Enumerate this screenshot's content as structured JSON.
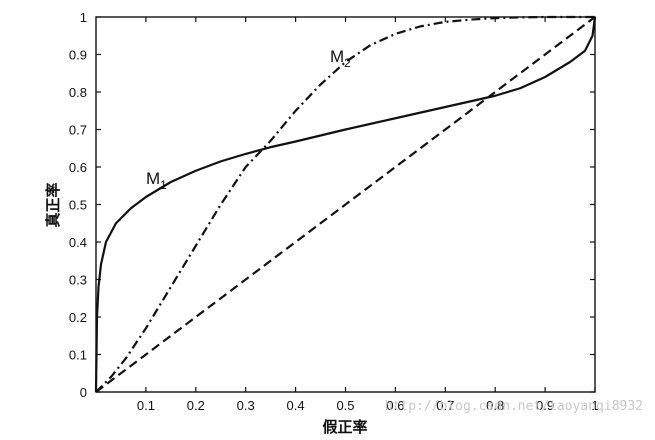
{
  "chart_data": {
    "type": "line",
    "xlabel": "假正率",
    "ylabel": "真正率",
    "xlim": [
      0,
      1
    ],
    "ylim": [
      0,
      1
    ],
    "x_ticks": [
      0.1,
      0.2,
      0.3,
      0.4,
      0.5,
      0.6,
      0.7,
      0.8,
      0.9,
      1
    ],
    "x_tick_labels": [
      "0.1",
      "0.2",
      "0.3",
      "0.4",
      "0.5",
      "0.6",
      "0.7",
      "0.8",
      "0.9",
      "1"
    ],
    "y_ticks": [
      0,
      0.1,
      0.2,
      0.3,
      0.4,
      0.5,
      0.6,
      0.7,
      0.8,
      0.9,
      1
    ],
    "y_tick_labels": [
      "0",
      "0.1",
      "0.2",
      "0.3",
      "0.4",
      "0.5",
      "0.6",
      "0.7",
      "0.8",
      "0.9",
      "1"
    ],
    "grid": false,
    "series": [
      {
        "name": "M1",
        "label_main": "M",
        "label_sub": "1",
        "line_style": "solid",
        "x": [
          0,
          0.002,
          0.005,
          0.01,
          0.02,
          0.04,
          0.07,
          0.1,
          0.15,
          0.2,
          0.25,
          0.3,
          0.35,
          0.4,
          0.45,
          0.5,
          0.55,
          0.6,
          0.65,
          0.7,
          0.75,
          0.8,
          0.85,
          0.9,
          0.95,
          0.98,
          0.995,
          1
        ],
        "y": [
          0,
          0.2,
          0.28,
          0.34,
          0.4,
          0.45,
          0.49,
          0.52,
          0.56,
          0.59,
          0.615,
          0.635,
          0.653,
          0.668,
          0.684,
          0.7,
          0.715,
          0.73,
          0.745,
          0.76,
          0.775,
          0.79,
          0.81,
          0.84,
          0.88,
          0.91,
          0.95,
          1
        ]
      },
      {
        "name": "M2",
        "label_main": "M",
        "label_sub": "2",
        "line_style": "dash-dot",
        "x": [
          0,
          0.03,
          0.06,
          0.1,
          0.15,
          0.2,
          0.25,
          0.3,
          0.35,
          0.4,
          0.45,
          0.5,
          0.55,
          0.6,
          0.65,
          0.7,
          0.75,
          0.8,
          0.85,
          0.9,
          0.95,
          1
        ],
        "y": [
          0,
          0.04,
          0.09,
          0.17,
          0.28,
          0.39,
          0.5,
          0.6,
          0.67,
          0.75,
          0.82,
          0.88,
          0.925,
          0.955,
          0.975,
          0.987,
          0.993,
          0.997,
          0.999,
          1.0,
          1.0,
          1.0
        ]
      },
      {
        "name": "",
        "line_style": "dashed",
        "x": [
          0,
          1
        ],
        "y": [
          0,
          1
        ]
      }
    ]
  },
  "watermark": "http://blog.csdn.net/taoyanqi8932"
}
